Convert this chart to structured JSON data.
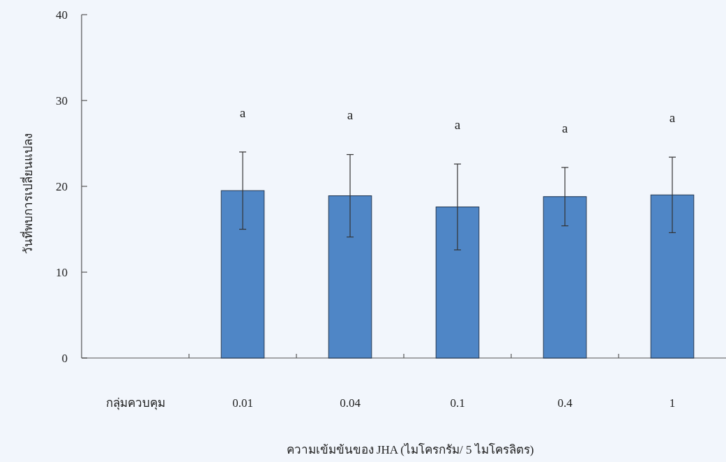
{
  "chart_data": {
    "type": "bar",
    "xlabel": "ความเข้มข้นของ JHA (ไมโครกรัม/ 5 ไมโครลิตร)",
    "ylabel": "วันที่พบการเปลี่ยนแปลง",
    "categories": [
      "กลุ่มควบคุม",
      "0.01",
      "0.04",
      "0.1",
      "0.4",
      "1"
    ],
    "values": [
      0,
      19.5,
      18.9,
      17.6,
      18.8,
      19.0
    ],
    "errors": [
      null,
      4.5,
      4.8,
      5.0,
      3.4,
      4.4
    ],
    "color": "#4f86c6",
    "ylim": [
      0,
      40
    ],
    "yticks": [
      0,
      10,
      20,
      30,
      40
    ],
    "annotations": [
      "a",
      "a",
      "a",
      "a",
      "a"
    ]
  }
}
